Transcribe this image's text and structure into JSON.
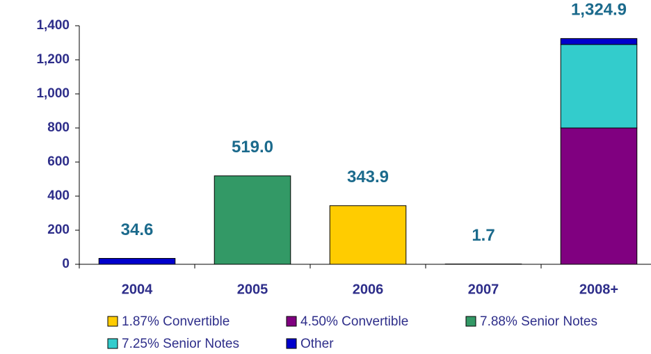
{
  "chart_data": {
    "type": "stacked_bar",
    "categories": [
      "2004",
      "2005",
      "2006",
      "2007",
      "2008+"
    ],
    "series": [
      {
        "name": "1.87% Convertible",
        "color": "#ffcc00",
        "values": [
          null,
          null,
          343.9,
          null,
          null
        ]
      },
      {
        "name": "4.50% Convertible",
        "color": "#800080",
        "values": [
          null,
          null,
          null,
          null,
          800
        ]
      },
      {
        "name": "7.88% Senior Notes",
        "color": "#339966",
        "values": [
          null,
          519.0,
          null,
          null,
          null
        ]
      },
      {
        "name": "7.25% Senior Notes",
        "color": "#33cccc",
        "values": [
          null,
          null,
          null,
          null,
          490
        ]
      },
      {
        "name": "Other",
        "color": "#0000cc",
        "values": [
          34.6,
          null,
          null,
          1.7,
          34.9
        ]
      }
    ],
    "totals": [
      34.6,
      519.0,
      343.9,
      1.7,
      1324.9
    ],
    "total_labels": [
      "34.6",
      "519.0",
      "343.9",
      "1.7",
      "1,324.9"
    ],
    "ylim": [
      0,
      1400
    ],
    "yticks": [
      0,
      200,
      400,
      600,
      800,
      {
        "value": 1000,
        "label": "1,000"
      },
      {
        "value": 1200,
        "label": "1,200"
      },
      {
        "value": 1400,
        "label": "1,400"
      }
    ]
  }
}
